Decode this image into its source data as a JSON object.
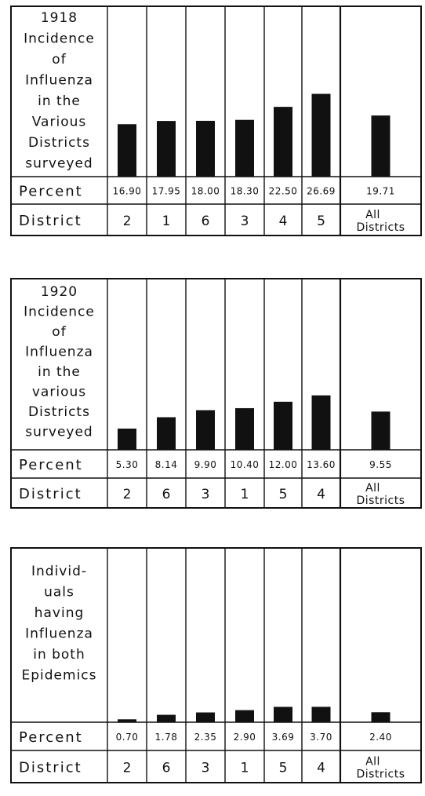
{
  "row_labels": {
    "percent": "Percent",
    "district": "District"
  },
  "all_label": [
    "All",
    "Districts"
  ],
  "colors": {
    "ink": "#111111",
    "paper": "#ffffff"
  },
  "chart_data": [
    {
      "type": "bar",
      "title_lines": [
        "1918",
        "Incidence",
        "of",
        "Influenza",
        "in the",
        "Various",
        "Districts",
        "surveyed"
      ],
      "categories": [
        "2",
        "1",
        "6",
        "3",
        "4",
        "5",
        "All Districts"
      ],
      "value_labels": [
        "16.90",
        "17.95",
        "18.00",
        "18.30",
        "22.50",
        "26.69",
        "19.71"
      ],
      "values": [
        16.9,
        17.95,
        18.0,
        18.3,
        22.5,
        26.69,
        19.71
      ],
      "ylabel": "Percent",
      "xlabel": "District"
    },
    {
      "type": "bar",
      "title_lines": [
        "1920",
        "Incidence",
        "of",
        "Influenza",
        "in the",
        "various",
        "Districts",
        "surveyed"
      ],
      "categories": [
        "2",
        "6",
        "3",
        "1",
        "5",
        "4",
        "All Districts"
      ],
      "value_labels": [
        "5.30",
        "8.14",
        "9.90",
        "10.40",
        "12.00",
        "13.60",
        "9.55"
      ],
      "values": [
        5.3,
        8.14,
        9.9,
        10.4,
        12.0,
        13.6,
        9.55
      ],
      "ylabel": "Percent",
      "xlabel": "District"
    },
    {
      "type": "bar",
      "title_lines": [
        "Individ-",
        "uals",
        "having",
        "Influenza",
        "in both",
        "Epidemics"
      ],
      "categories": [
        "2",
        "6",
        "3",
        "1",
        "5",
        "4",
        "All Districts"
      ],
      "value_labels": [
        "0.70",
        "1.78",
        "2.35",
        "2.90",
        "3.69",
        "3.70",
        "2.40"
      ],
      "values": [
        0.7,
        1.78,
        2.35,
        2.9,
        3.69,
        3.7,
        2.4
      ],
      "ylabel": "Percent",
      "xlabel": "District"
    }
  ]
}
